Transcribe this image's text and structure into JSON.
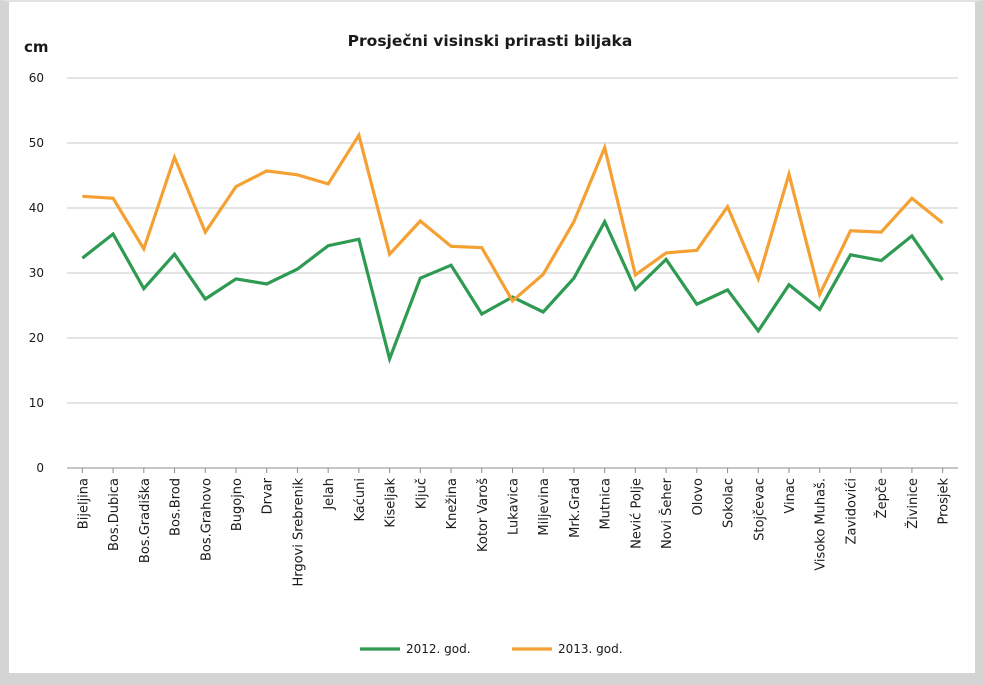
{
  "chart_data": {
    "type": "line",
    "title": "Prosječni visinski prirasti biljaka",
    "ylabel": "cm",
    "xlabel": "",
    "ylim": [
      0,
      60
    ],
    "yticks": [
      0,
      10,
      20,
      30,
      40,
      50,
      60
    ],
    "grid": true,
    "legend_position": "bottom",
    "categories": [
      "Bijeljina",
      "Bos.Dubica",
      "Bos.Gradiška",
      "Bos.Brod",
      "Bos.Grahovo",
      "Bugojno",
      "Drvar",
      "Hrgovi Srebrenik",
      "Jelah",
      "Kaćuni",
      "Kiseljak",
      "Ključ",
      "Knežina",
      "Kotor Varoš",
      "Lukavica",
      "Miljevina",
      "Mrk.Grad",
      "Mutnica",
      "Nević Polje",
      "Novi Šeher",
      "Olovo",
      "Sokolac",
      "Stojčevac",
      "Vinac",
      "Visoko Muhaš.",
      "Zavidovići",
      "Žepče",
      "Živinice",
      "Prosjek"
    ],
    "series": [
      {
        "name": "2012. god.",
        "color": "#2e9a52",
        "values": [
          32.3,
          36.0,
          27.6,
          32.9,
          26.0,
          29.1,
          28.3,
          30.6,
          34.2,
          35.2,
          16.8,
          29.2,
          31.2,
          23.7,
          26.3,
          24.0,
          29.2,
          37.9,
          27.5,
          32.1,
          25.2,
          27.4,
          21.1,
          28.2,
          24.4,
          32.8,
          31.9,
          35.7,
          28.9
        ]
      },
      {
        "name": "2013. god.",
        "color": "#f5a033",
        "values": [
          41.8,
          41.5,
          33.7,
          47.8,
          36.3,
          43.3,
          45.7,
          45.1,
          43.7,
          51.2,
          32.9,
          38.0,
          34.1,
          33.9,
          25.7,
          29.8,
          37.9,
          49.3,
          29.7,
          33.1,
          33.5,
          40.2,
          29.1,
          45.2,
          26.7,
          36.5,
          36.3,
          41.5,
          37.7
        ]
      }
    ]
  }
}
